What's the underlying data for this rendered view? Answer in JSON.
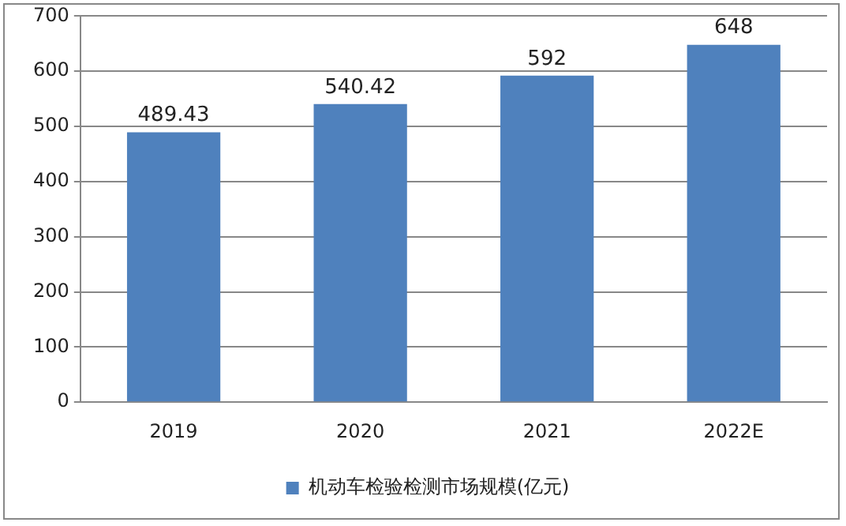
{
  "chart_data": {
    "type": "bar",
    "categories": [
      "2019",
      "2020",
      "2021",
      "2022E"
    ],
    "series": [
      {
        "name": "机动车检验检测市场规模(亿元)",
        "color": "#4f81bd",
        "values": [
          489.43,
          540.42,
          592,
          648
        ]
      }
    ],
    "ylim": [
      0,
      700
    ],
    "yticks": [
      0,
      100,
      200,
      300,
      400,
      500,
      600,
      700
    ],
    "grid": "y",
    "legend": "bottom",
    "data_labels": true
  }
}
